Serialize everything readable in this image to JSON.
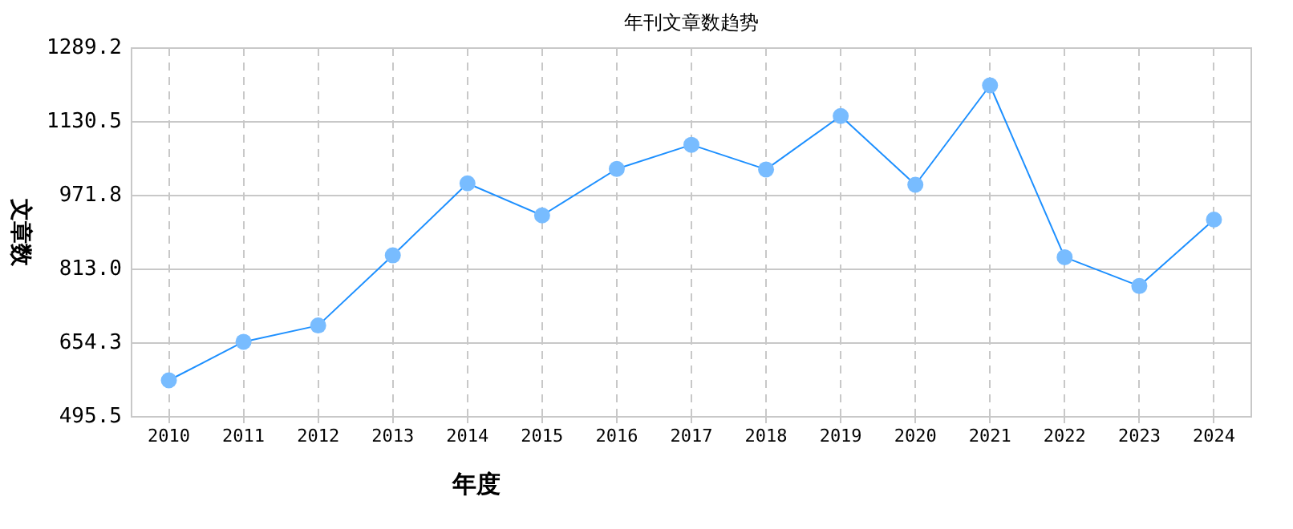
{
  "chart_data": {
    "type": "line",
    "title": "年刊文章数趋势",
    "xlabel": "年度",
    "ylabel": "文章数",
    "categories": [
      "2010",
      "2011",
      "2012",
      "2013",
      "2014",
      "2015",
      "2016",
      "2017",
      "2018",
      "2019",
      "2020",
      "2021",
      "2022",
      "2023",
      "2024"
    ],
    "series": [
      {
        "color": "#1e90ff",
        "values": [
          574,
          657,
          692,
          843,
          998,
          929,
          1029,
          1081,
          1028,
          1143,
          995,
          1209,
          839,
          777,
          920
        ]
      }
    ],
    "ylim": [
      495.5,
      1289.2
    ],
    "yticks": [
      495.5,
      654.3,
      {
        "value": 813.0,
        "label": "813.0"
      },
      971.8,
      1130.5,
      1289.2
    ],
    "grid": true,
    "marker": "circle",
    "line_style": "solid",
    "legend": false
  }
}
